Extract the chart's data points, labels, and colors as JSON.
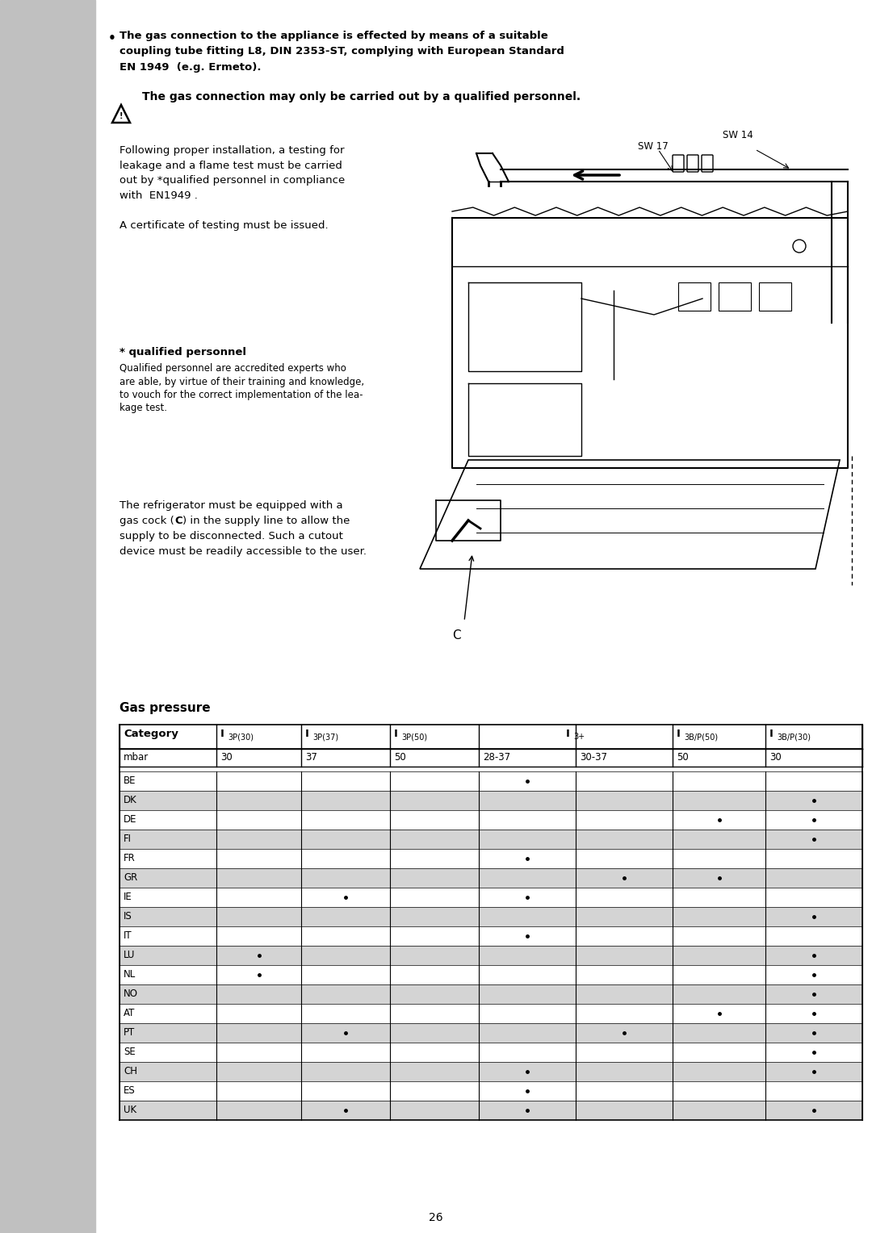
{
  "page_bg": "#ffffff",
  "sidebar_color": "#c0c0c0",
  "bullet_lines": [
    "The gas connection to the appliance is effected by means of a suitable",
    "coupling tube fitting L8, DIN 2353-ST, complying with European Standard",
    "EN 1949  (e.g. Ermeto)."
  ],
  "warning_text": "The gas connection may only be carried out by a qualified personnel.",
  "para1_lines": [
    "Following proper installation, a testing for",
    "leakage and a flame test must be carried",
    "out by *qualified personnel in compliance",
    "with  EN1949 .",
    "",
    "A certificate of testing must be issued."
  ],
  "qual_header": "* qualified personnel",
  "qual_body_lines": [
    "Qualified personnel are accredited experts who",
    "are able, by virtue of their training and knowledge,",
    "to vouch for the correct implementation of the lea-",
    "kage test."
  ],
  "para2_pre": "The refrigerator must be equipped with a",
  "para2_line2a": "gas cock (",
  "para2_bold": "C",
  "para2_line2b": ") in the supply line to allow the",
  "para2_line3": "supply to be disconnected. Such a cutout",
  "para2_line4": "device must be readily accessible to the user.",
  "gas_pressure_title": "Gas pressure",
  "mbar_vals": [
    "mbar",
    "30",
    "37",
    "50",
    "28-37",
    "30-37",
    "50",
    "30"
  ],
  "countries": [
    "BE",
    "DK",
    "DE",
    "FI",
    "FR",
    "GR",
    "IE",
    "IS",
    "IT",
    "LU",
    "NL",
    "NO",
    "AT",
    "PT",
    "SE",
    "CH",
    "ES",
    "UK"
  ],
  "dots": {
    "BE": [
      3
    ],
    "DK": [
      6
    ],
    "DE": [
      5,
      6
    ],
    "FI": [
      6
    ],
    "FR": [
      3
    ],
    "GR": [
      4,
      5
    ],
    "IE": [
      1,
      3
    ],
    "IS": [
      6
    ],
    "IT": [
      3
    ],
    "LU": [
      0,
      6
    ],
    "NL": [
      0,
      6
    ],
    "NO": [
      6
    ],
    "AT": [
      5,
      6
    ],
    "PT": [
      1,
      4,
      6
    ],
    "SE": [
      6
    ],
    "CH": [
      3,
      6
    ],
    "ES": [
      3
    ],
    "UK": [
      1,
      3,
      6
    ]
  },
  "page_number": "26",
  "row_alt_color": "#d4d4d4"
}
